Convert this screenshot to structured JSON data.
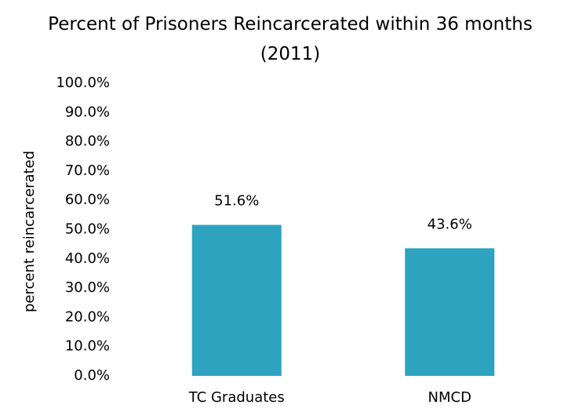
{
  "chart_data": {
    "type": "bar",
    "title": "Percent of Prisoners Reincarcerated within 36 months (2011)",
    "y_label": "percent reincarcerated",
    "categories": [
      "TC Graduates",
      "NMCD"
    ],
    "values": [
      51.6,
      43.6
    ],
    "value_labels": [
      "51.6%",
      "43.6%"
    ],
    "color": "#2ea3c0",
    "ylim": [
      0,
      100
    ],
    "yticks": [
      {
        "value": 0,
        "label": "0.0%"
      },
      {
        "value": 10,
        "label": "10.0%"
      },
      {
        "value": 20,
        "label": "20.0%"
      },
      {
        "value": 30,
        "label": "30.0%"
      },
      {
        "value": 40,
        "label": "40.0%"
      },
      {
        "value": 50,
        "label": "50.0%"
      },
      {
        "value": 60,
        "label": "60.0%"
      },
      {
        "value": 70,
        "label": "70.0%"
      },
      {
        "value": 80,
        "label": "80.0%"
      },
      {
        "value": 90,
        "label": "90.0%"
      },
      {
        "value": 100,
        "label": "100.0%"
      }
    ],
    "grid": false
  }
}
